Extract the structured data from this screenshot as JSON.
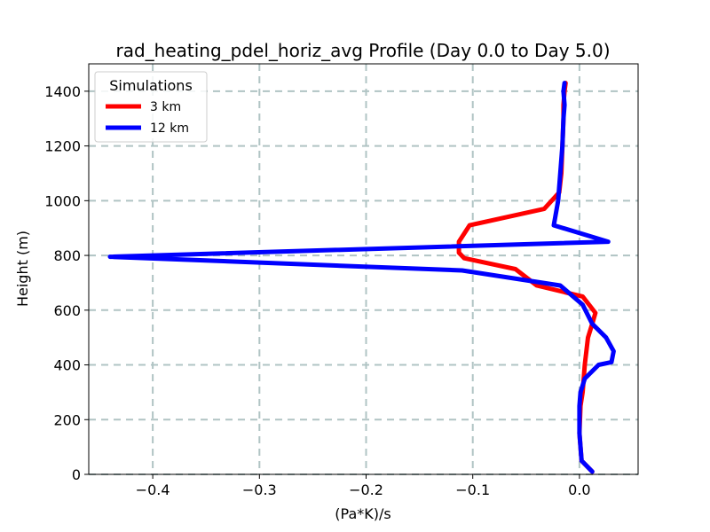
{
  "chart_data": {
    "type": "line",
    "title": "rad_heating_pdel_horiz_avg Profile (Day 0.0 to Day 5.0)",
    "xlabel": "(Pa*K)/s",
    "ylabel": "Height (m)",
    "xlim": [
      -0.46,
      0.055
    ],
    "ylim": [
      0,
      1500
    ],
    "x_ticks": [
      -0.4,
      -0.3,
      -0.2,
      -0.1,
      0.0
    ],
    "x_tick_labels": [
      "−0.4",
      "−0.3",
      "−0.2",
      "−0.1",
      "0.0"
    ],
    "y_ticks": [
      0,
      200,
      400,
      600,
      800,
      1000,
      1200,
      1400
    ],
    "y_tick_labels": [
      "0",
      "200",
      "400",
      "600",
      "800",
      "1000",
      "1200",
      "1400"
    ],
    "grid": true,
    "legend_title": "Simulations",
    "legend_position": "top-left",
    "series": [
      {
        "name": "3 km",
        "color": "#ff0000",
        "x": [
          0.012,
          0.002,
          0.0,
          0.001,
          0.003,
          0.005,
          0.008,
          0.012,
          0.015,
          0.003,
          -0.04,
          -0.06,
          -0.108,
          -0.113,
          -0.113,
          -0.103,
          -0.033,
          -0.019,
          -0.017,
          -0.016,
          -0.015,
          -0.015,
          -0.014,
          -0.013
        ],
        "y": [
          10,
          50,
          150,
          250,
          300,
          400,
          500,
          550,
          590,
          650,
          690,
          750,
          790,
          810,
          850,
          910,
          970,
          1030,
          1100,
          1200,
          1300,
          1350,
          1400,
          1430
        ]
      },
      {
        "name": "12 km",
        "color": "#0000ff",
        "x": [
          0.012,
          0.002,
          0.0,
          0.0,
          0.001,
          0.005,
          0.018,
          0.03,
          0.032,
          0.025,
          0.012,
          0.003,
          -0.018,
          -0.11,
          -0.44,
          0.027,
          -0.024,
          -0.02,
          -0.018,
          -0.016,
          -0.015,
          -0.014,
          -0.015,
          -0.014
        ],
        "y": [
          10,
          50,
          150,
          250,
          300,
          350,
          400,
          410,
          450,
          500,
          550,
          620,
          690,
          745,
          795,
          850,
          910,
          1000,
          1100,
          1200,
          1300,
          1350,
          1400,
          1430
        ]
      }
    ]
  }
}
